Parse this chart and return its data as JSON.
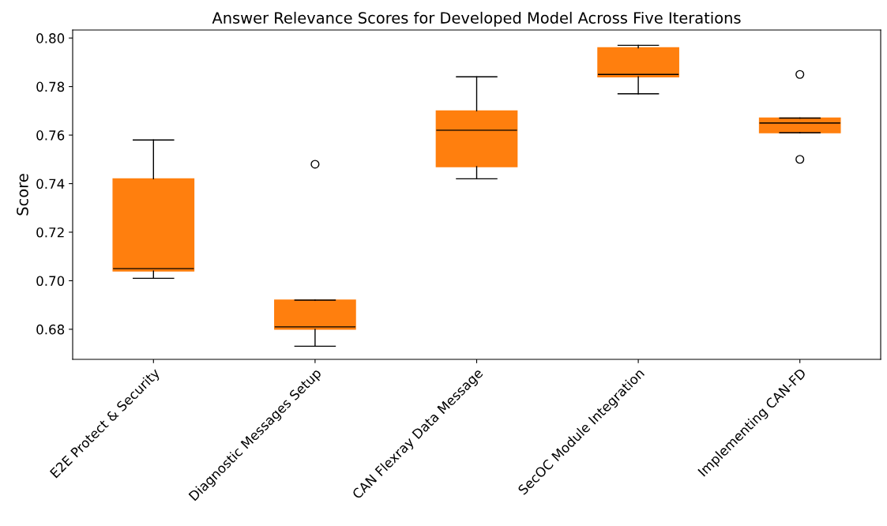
{
  "chart_data": {
    "type": "box",
    "title": "Answer Relevance Scores for Developed Model Across Five Iterations",
    "ylabel": "Score",
    "categories": [
      "E2E Protect & Security",
      "Diagnostic Messages Setup",
      "CAN Flexray Data Message",
      "SecOC Module Integration",
      "Implementing CAN-FD"
    ],
    "color": "#ff7f0e",
    "boxes": [
      {
        "low": 0.701,
        "q1": 0.704,
        "median": 0.705,
        "q3": 0.742,
        "high": 0.758
      },
      {
        "low": 0.673,
        "q1": 0.68,
        "median": 0.681,
        "q3": 0.692,
        "high": 0.692,
        "outliers": [
          0.748
        ]
      },
      {
        "low": 0.742,
        "q1": 0.747,
        "median": 0.762,
        "q3": 0.77,
        "high": 0.784
      },
      {
        "low": 0.777,
        "q1": 0.784,
        "median": 0.785,
        "q3": 0.796,
        "high": 0.797
      },
      {
        "low": 0.761,
        "q1": 0.761,
        "median": 0.765,
        "q3": 0.767,
        "high": 0.767,
        "outliers": [
          0.785,
          0.75
        ]
      }
    ],
    "ylim": [
      0.6676,
      0.8033
    ],
    "yticks": [
      0.68,
      {
        "value": 0.7,
        "label": "0.70"
      },
      0.72,
      0.74,
      0.76,
      0.78,
      {
        "value": 0.8,
        "label": "0.80"
      }
    ]
  }
}
